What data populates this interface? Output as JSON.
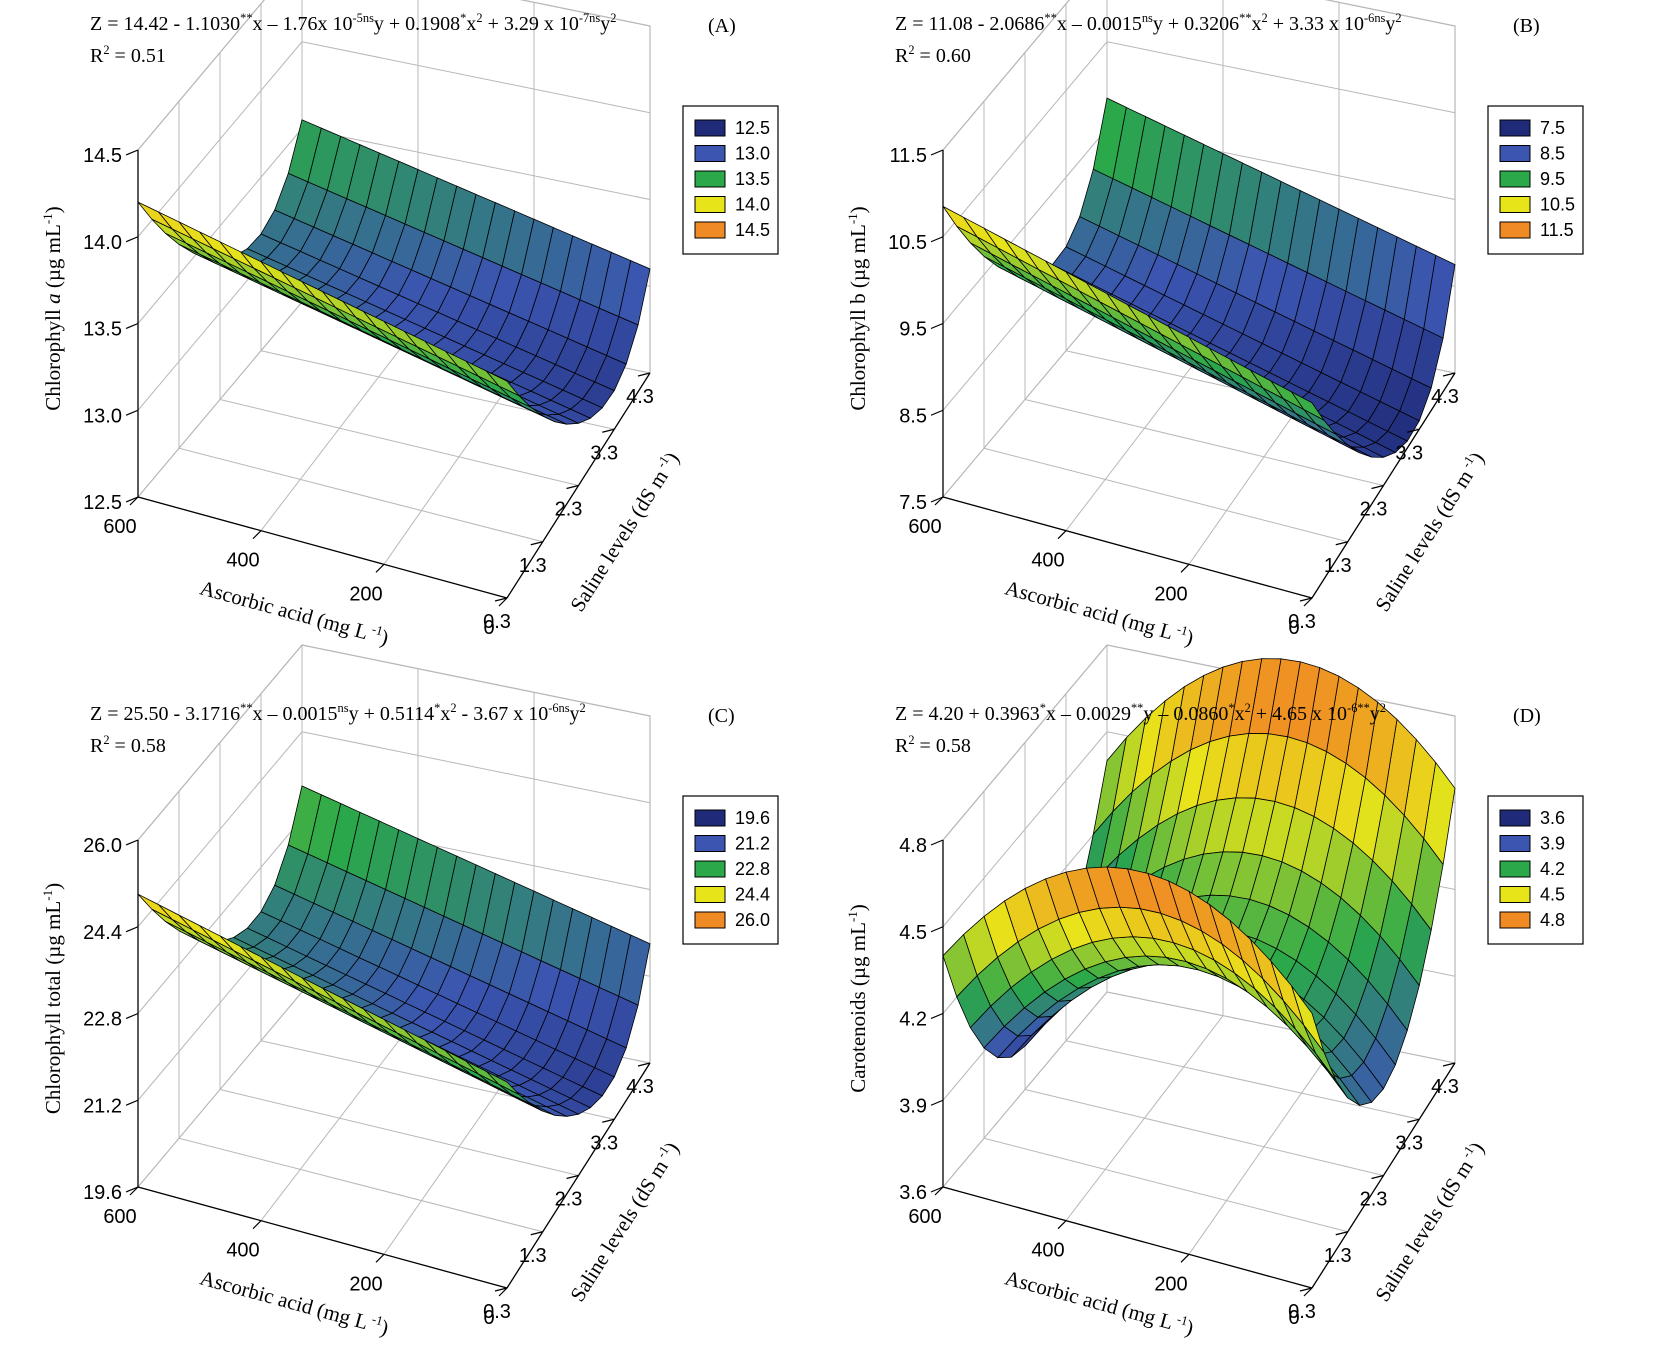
{
  "figure": {
    "panels": [
      {
        "letter": "(A)",
        "equation": [
          {
            "t": "Z = 14.42 - 1.1030"
          },
          {
            "t": "**",
            "sup": true
          },
          {
            "t": "x – 1.76x 10"
          },
          {
            "t": "-5ns",
            "sup": true
          },
          {
            "t": "y + 0.1908"
          },
          {
            "t": "*",
            "sup": true
          },
          {
            "t": "x"
          },
          {
            "t": "2",
            "sup": true
          },
          {
            "t": " + 3.29 x 10"
          },
          {
            "t": "-7ns",
            "sup": true
          },
          {
            "t": "y"
          },
          {
            "t": "2",
            "sup": true
          }
        ],
        "r2": [
          {
            "t": "R"
          },
          {
            "t": "2",
            "sup": true
          },
          {
            "t": " = 0.51"
          }
        ],
        "zlabel": [
          {
            "t": "Chlorophyll "
          },
          {
            "t": "a",
            "italic": true
          },
          {
            "t": " (µg mL"
          },
          {
            "t": "-1",
            "sup": true
          },
          {
            "t": ")"
          }
        ]
      },
      {
        "letter": "(B)",
        "equation": [
          {
            "t": "Z = 11.08 - 2.0686"
          },
          {
            "t": "**",
            "sup": true
          },
          {
            "t": "x – 0.0015"
          },
          {
            "t": "ns",
            "sup": true
          },
          {
            "t": "y + 0.3206"
          },
          {
            "t": "**",
            "sup": true
          },
          {
            "t": "x"
          },
          {
            "t": "2",
            "sup": true
          },
          {
            "t": " + 3.33 x 10"
          },
          {
            "t": "-6ns",
            "sup": true
          },
          {
            "t": "y"
          },
          {
            "t": "2",
            "sup": true
          }
        ],
        "r2": [
          {
            "t": "R"
          },
          {
            "t": "2",
            "sup": true
          },
          {
            "t": " = 0.60"
          }
        ],
        "zlabel": [
          {
            "t": "Chlorophyll b (µg mL"
          },
          {
            "t": "-1",
            "sup": true
          },
          {
            "t": ")"
          }
        ]
      },
      {
        "letter": "(C)",
        "equation": [
          {
            "t": "Z = 25.50 - 3.1716"
          },
          {
            "t": "**",
            "sup": true
          },
          {
            "t": "x – 0.0015"
          },
          {
            "t": "ns",
            "sup": true
          },
          {
            "t": "y + 0.5114"
          },
          {
            "t": "*",
            "sup": true
          },
          {
            "t": "x"
          },
          {
            "t": "2",
            "sup": true
          },
          {
            "t": " - 3.67 x 10"
          },
          {
            "t": "-6ns",
            "sup": true
          },
          {
            "t": "y"
          },
          {
            "t": "2",
            "sup": true
          }
        ],
        "r2": [
          {
            "t": "R"
          },
          {
            "t": "2",
            "sup": true
          },
          {
            "t": " = 0.58"
          }
        ],
        "zlabel": [
          {
            "t": "Chlorophyll total (µg mL"
          },
          {
            "t": "-1",
            "sup": true
          },
          {
            "t": ")"
          }
        ]
      },
      {
        "letter": "(D)",
        "equation": [
          {
            "t": "Z = 4.20 + 0.3963"
          },
          {
            "t": "*",
            "sup": true
          },
          {
            "t": "x – 0.0029"
          },
          {
            "t": "**",
            "sup": true
          },
          {
            "t": "y – 0.0860"
          },
          {
            "t": "*",
            "sup": true
          },
          {
            "t": "x"
          },
          {
            "t": "2",
            "sup": true
          },
          {
            "t": " + 4.65 x 10"
          },
          {
            "t": "-6**",
            "sup": true
          },
          {
            "t": "y"
          },
          {
            "t": "2",
            "sup": true
          }
        ],
        "r2": [
          {
            "t": "R"
          },
          {
            "t": "2",
            "sup": true
          },
          {
            "t": " = 0.58"
          }
        ],
        "zlabel": [
          {
            "t": "Carotenoids (µg mL"
          },
          {
            "t": "-1",
            "sup": true
          },
          {
            "t": ")"
          }
        ]
      }
    ],
    "xlabel": [
      {
        "t": "Ascorbic acid (mg L"
      },
      {
        "t": " -1",
        "sup": true
      },
      {
        "t": ")"
      }
    ],
    "ylabel": [
      {
        "t": "Saline levels (dS m"
      },
      {
        "t": " -1",
        "sup": true
      },
      {
        "t": ")"
      }
    ],
    "colors": {
      "navy": "#1f2a78",
      "blue": "#3b55b0",
      "green": "#2aa84a",
      "yellow": "#e8e41a",
      "orange": "#f08a24",
      "axis": "#000000",
      "grid": "#b8b8b8"
    }
  },
  "chart_data": [
    {
      "panel": "A",
      "type": "surface3d",
      "x_name": "Ascorbic acid (mg L-1)",
      "x_ticks": [
        0,
        200,
        400,
        600
      ],
      "xlim": [
        0,
        600
      ],
      "y_name": "Saline levels (dS m-1)",
      "y_ticks": [
        0.3,
        1.3,
        2.3,
        3.3,
        4.3
      ],
      "ylim": [
        0.3,
        4.3
      ],
      "z_name": "Chlorophyll a (µg mL-1)",
      "z_ticks": [
        12.5,
        13.0,
        13.5,
        14.0,
        14.5
      ],
      "z_tick_labels": [
        "12.5",
        "13.0",
        "13.5",
        "14.0",
        "14.5"
      ],
      "zlim": [
        12.5,
        14.5
      ],
      "legend": [
        "12.5",
        "13.0",
        "13.5",
        "14.0",
        "14.5"
      ],
      "legend_values": [
        12.5,
        13.0,
        13.5,
        14.0,
        14.5
      ],
      "surface_corners": {
        "x0_y0.3": 13.8,
        "x600_y0.3": 14.2,
        "x0_y4.3": 13.3,
        "x600_y4.3": 13.6,
        "min_near_y": 13.0
      }
    },
    {
      "panel": "B",
      "type": "surface3d",
      "x_name": "Ascorbic acid (mg L-1)",
      "x_ticks": [
        0,
        200,
        400,
        600
      ],
      "xlim": [
        0,
        600
      ],
      "y_name": "Saline levels (dS m-1)",
      "y_ticks": [
        0.3,
        1.3,
        2.3,
        3.3,
        4.3
      ],
      "ylim": [
        0.3,
        4.3
      ],
      "z_name": "Chlorophyll b (µg mL-1)",
      "z_ticks": [
        7.5,
        8.5,
        9.5,
        10.5,
        11.5
      ],
      "z_tick_labels": [
        "7.5",
        "8.5",
        "9.5",
        "10.5",
        "11.5"
      ],
      "zlim": [
        7.5,
        11.5
      ],
      "legend": [
        "7.5",
        "8.5",
        "9.5",
        "10.5",
        "11.5"
      ],
      "legend_values": [
        7.5,
        8.5,
        9.5,
        10.5,
        11.5
      ],
      "surface_corners": {
        "x0_y0.3": 9.6,
        "x600_y0.3": 10.8,
        "x0_y4.3": 9.0,
        "x600_y4.3": 9.4,
        "min_near_y": 8.0
      }
    },
    {
      "panel": "C",
      "type": "surface3d",
      "x_name": "Ascorbic acid (mg L-1)",
      "x_ticks": [
        0,
        200,
        400,
        600
      ],
      "xlim": [
        0,
        600
      ],
      "y_name": "Saline levels (dS m-1)",
      "y_ticks": [
        0.3,
        1.3,
        2.3,
        3.3,
        4.3
      ],
      "ylim": [
        0.3,
        4.3
      ],
      "z_name": "Chlorophyll total (µg mL-1)",
      "z_ticks": [
        19.6,
        21.2,
        22.8,
        24.4,
        26.0
      ],
      "z_tick_labels": [
        "19.6",
        "21.2",
        "22.8",
        "24.4",
        "26.0"
      ],
      "zlim": [
        19.6,
        26.0
      ],
      "legend": [
        "19.6",
        "21.2",
        "22.8",
        "24.4",
        "26.0"
      ],
      "legend_values": [
        19.6,
        21.2,
        22.8,
        24.4,
        26.0
      ],
      "surface_corners": {
        "x0_y0.3": 23.0,
        "x600_y0.3": 24.8,
        "x0_y4.3": 22.3,
        "x600_y4.3": 22.6,
        "min_near_y": 21.0
      }
    },
    {
      "panel": "D",
      "type": "surface3d",
      "x_name": "Ascorbic acid (mg L-1)",
      "x_ticks": [
        0,
        200,
        400,
        600
      ],
      "xlim": [
        0,
        600
      ],
      "y_name": "Saline levels (dS m-1)",
      "y_ticks": [
        0.3,
        1.3,
        2.3,
        3.3,
        4.3
      ],
      "ylim": [
        0.3,
        4.3
      ],
      "z_name": "Carotenoids (µg mL-1)",
      "z_ticks": [
        3.6,
        3.9,
        4.2,
        4.5,
        4.8
      ],
      "z_tick_labels": [
        "3.6",
        "3.9",
        "4.2",
        "4.5",
        "4.8"
      ],
      "zlim": [
        3.6,
        4.8
      ],
      "legend": [
        "3.6",
        "3.9",
        "4.2",
        "4.5",
        "4.8"
      ],
      "legend_values": [
        3.6,
        3.9,
        4.2,
        4.5,
        4.8
      ],
      "surface_corners": {
        "x0_y0.3": 4.55,
        "x600_y0.3": 4.2,
        "x0_y4.3": 4.6,
        "x600_y4.3": 4.8,
        "saddle_min": 3.75
      }
    }
  ]
}
